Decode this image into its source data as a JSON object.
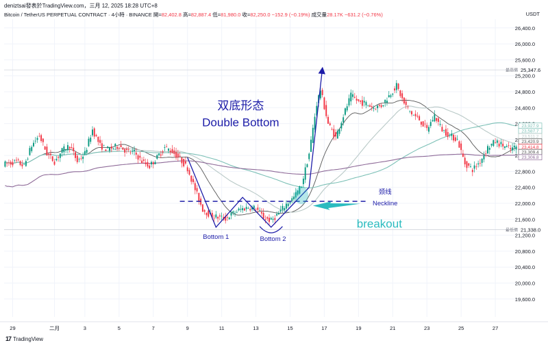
{
  "header": {
    "author_line": "deniztsai發表於TradingView.com，三月 12, 2025 18:28 UTC+8",
    "symbol": "Bitcoin / TetherUS PERPETUAL CONTRACT · 4小時 · BINANCE",
    "open_label": "開=",
    "open_value": "82,402.8",
    "high_label": "高=",
    "high_value": "82,887.4",
    "low_label": "低=",
    "low_value": "81,980.0",
    "close_label": "收=",
    "close_value": "82,250.0",
    "change_value": "−152.9 (−0.19%)",
    "volume_label": "成交量",
    "volume_value": "28.17K",
    "volume_change": "−631.2 (−0.76%)",
    "currency": "USDT"
  },
  "footer": {
    "brand": "TradingView",
    "brand_icon": "tradingview-logo-icon"
  },
  "colors": {
    "up": "#089981",
    "down": "#f23645",
    "pattern": "#1c1ca8",
    "breakout": "#2bbbbf",
    "axis_text": "#131722",
    "ma_gray": "#555555",
    "ma_purple": "#8e6a98",
    "ma_teal": "#7cc0b6",
    "ma_light": "#b9c9c7"
  },
  "chart_data": {
    "type": "candlestick",
    "y_axis": {
      "ticks": [
        "26,400.0",
        "26,000.0",
        "25,600.0",
        "25,200.0",
        "24,800.0",
        "24,400.0",
        "24,000.0",
        "23,600.0",
        "23,200.0",
        "22,800.0",
        "22,400.0",
        "22,000.0",
        "21,600.0",
        "21,200.0",
        "20,800.0",
        "20,400.0",
        "20,000.0",
        "19,600.0"
      ],
      "tick_values": [
        26400,
        26000,
        25600,
        25200,
        24800,
        24400,
        24000,
        23600,
        23200,
        22800,
        22400,
        22000,
        21600,
        21200,
        20800,
        20400,
        20000,
        19600
      ],
      "range": [
        19150,
        26620
      ]
    },
    "x_axis": {
      "ticks": [
        "29",
        "二月",
        "3",
        "5",
        "7",
        "9",
        "11",
        "13",
        "15",
        "17",
        "19",
        "21",
        "23",
        "25",
        "27"
      ],
      "tick_index": [
        4,
        26,
        42,
        60,
        78,
        96,
        114,
        132,
        150,
        168,
        186,
        204,
        222,
        240,
        258
      ]
    },
    "price_labels": [
      {
        "label": "最高價",
        "value": "25,347.6",
        "v": 25347.6,
        "style": "plain"
      },
      {
        "label": "",
        "value": "23,927.9",
        "v": 23927.9,
        "color": "#7cc0b6"
      },
      {
        "label": "",
        "value": "23,587.7",
        "v": 23587.7,
        "color": "#7cc0b6"
      },
      {
        "label": "",
        "value": "23,511.2",
        "v": 23511.2,
        "color": "#b9c9c7"
      },
      {
        "label": "",
        "value": "23,420.9",
        "v": 23420.9,
        "color": "#555555"
      },
      {
        "label": "",
        "value": "23,414.8",
        "v": 23414.8,
        "color": "#f23645"
      },
      {
        "label": "",
        "value": "23,309.4",
        "v": 23309.4,
        "color": "#555555"
      },
      {
        "label": "",
        "value": "23,306.8",
        "v": 23306.8,
        "color": "#8e6a98"
      },
      {
        "label": "最低價",
        "value": "21,338.0",
        "v": 21338.0,
        "style": "plain"
      }
    ],
    "annotations": {
      "title_cn": "双底形态",
      "title_en": "Double Bottom",
      "neckline_cn": "颈线",
      "neckline_en": "Neckline",
      "neckline_value": 22050,
      "bottom1": "Bottom 1",
      "bottom2": "Bottom 2",
      "breakout": "breakout"
    },
    "path_anchors": [
      {
        "i": 0,
        "v": 22980
      },
      {
        "i": 6,
        "v": 23050
      },
      {
        "i": 10,
        "v": 22930
      },
      {
        "i": 14,
        "v": 23450
      },
      {
        "i": 18,
        "v": 23700
      },
      {
        "i": 22,
        "v": 23250
      },
      {
        "i": 26,
        "v": 23050
      },
      {
        "i": 30,
        "v": 23320
      },
      {
        "i": 34,
        "v": 23450
      },
      {
        "i": 38,
        "v": 23050
      },
      {
        "i": 42,
        "v": 23250
      },
      {
        "i": 46,
        "v": 23850
      },
      {
        "i": 50,
        "v": 23450
      },
      {
        "i": 54,
        "v": 23350
      },
      {
        "i": 60,
        "v": 23450
      },
      {
        "i": 64,
        "v": 23300
      },
      {
        "i": 68,
        "v": 23280
      },
      {
        "i": 72,
        "v": 23050
      },
      {
        "i": 76,
        "v": 22930
      },
      {
        "i": 80,
        "v": 23150
      },
      {
        "i": 84,
        "v": 23400
      },
      {
        "i": 88,
        "v": 23300
      },
      {
        "i": 92,
        "v": 23120
      },
      {
        "i": 96,
        "v": 22880
      },
      {
        "i": 100,
        "v": 22350
      },
      {
        "i": 104,
        "v": 21850
      },
      {
        "i": 108,
        "v": 21700
      },
      {
        "i": 112,
        "v": 21650
      },
      {
        "i": 116,
        "v": 21620
      },
      {
        "i": 120,
        "v": 21750
      },
      {
        "i": 124,
        "v": 21850
      },
      {
        "i": 128,
        "v": 21900
      },
      {
        "i": 132,
        "v": 21880
      },
      {
        "i": 136,
        "v": 21650
      },
      {
        "i": 140,
        "v": 21560
      },
      {
        "i": 144,
        "v": 21750
      },
      {
        "i": 148,
        "v": 21980
      },
      {
        "i": 152,
        "v": 22150
      },
      {
        "i": 156,
        "v": 22450
      },
      {
        "i": 160,
        "v": 23250
      },
      {
        "i": 164,
        "v": 24500
      },
      {
        "i": 166,
        "v": 24850
      },
      {
        "i": 170,
        "v": 24000
      },
      {
        "i": 174,
        "v": 23650
      },
      {
        "i": 178,
        "v": 24200
      },
      {
        "i": 182,
        "v": 24700
      },
      {
        "i": 186,
        "v": 24550
      },
      {
        "i": 190,
        "v": 24500
      },
      {
        "i": 194,
        "v": 24400
      },
      {
        "i": 198,
        "v": 24450
      },
      {
        "i": 202,
        "v": 24700
      },
      {
        "i": 206,
        "v": 24950
      },
      {
        "i": 210,
        "v": 24500
      },
      {
        "i": 214,
        "v": 24250
      },
      {
        "i": 218,
        "v": 24100
      },
      {
        "i": 222,
        "v": 23850
      },
      {
        "i": 226,
        "v": 24200
      },
      {
        "i": 230,
        "v": 23850
      },
      {
        "i": 234,
        "v": 23700
      },
      {
        "i": 238,
        "v": 23600
      },
      {
        "i": 242,
        "v": 23000
      },
      {
        "i": 246,
        "v": 22850
      },
      {
        "i": 250,
        "v": 23050
      },
      {
        "i": 254,
        "v": 23400
      },
      {
        "i": 258,
        "v": 23550
      },
      {
        "i": 262,
        "v": 23450
      },
      {
        "i": 266,
        "v": 23350
      },
      {
        "i": 269,
        "v": 23420
      }
    ],
    "candle_count": 270,
    "moving_averages": [
      {
        "period": 20,
        "color": "#555555"
      },
      {
        "period": 50,
        "color": "#b9c9c7"
      },
      {
        "period": 100,
        "color": "#7cc0b6"
      },
      {
        "period": 200,
        "color": "#8e6a98"
      }
    ]
  }
}
